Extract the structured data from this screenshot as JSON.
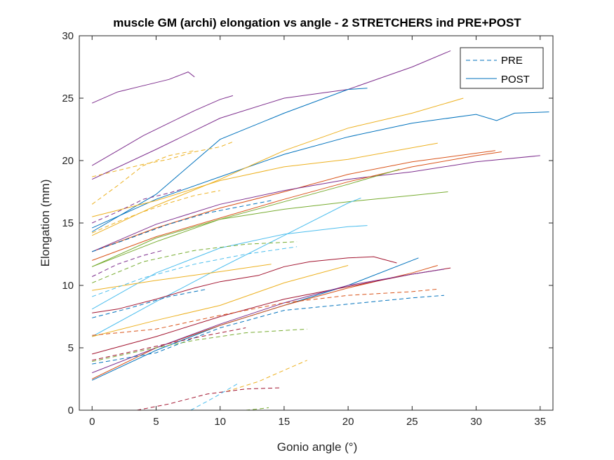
{
  "chart_data": {
    "type": "line",
    "title": "muscle GM (archi) elongation vs angle - 2 STRETCHERS ind PRE+POST",
    "xlabel": "Gonio angle (°)",
    "ylabel": "Elongation (mm)",
    "xlim": [
      -1,
      36
    ],
    "ylim": [
      0,
      30
    ],
    "xticks": [
      0,
      5,
      10,
      15,
      20,
      25,
      30,
      35
    ],
    "yticks": [
      0,
      5,
      10,
      15,
      20,
      25,
      30
    ],
    "grid": false,
    "legend": {
      "placement": "top-right",
      "entries": [
        {
          "label": "PRE",
          "style": "dashed",
          "color": "#0072BD"
        },
        {
          "label": "POST",
          "style": "solid",
          "color": "#0072BD"
        }
      ]
    },
    "series": [
      {
        "group": "POST",
        "color": "#7E2F8E",
        "x": [
          0,
          2,
          4,
          6,
          7.5,
          8
        ],
        "y": [
          24.6,
          25.5,
          26.0,
          26.5,
          27.1,
          26.7
        ]
      },
      {
        "group": "POST",
        "color": "#7E2F8E",
        "x": [
          0,
          2,
          4,
          6,
          8,
          10,
          11
        ],
        "y": [
          19.6,
          20.8,
          22.0,
          23.0,
          24.0,
          24.9,
          25.2
        ]
      },
      {
        "group": "POST",
        "color": "#7E2F8E",
        "x": [
          0,
          5,
          10,
          15,
          20,
          25,
          28
        ],
        "y": [
          18.5,
          20.9,
          23.4,
          25.0,
          25.7,
          27.5,
          28.8
        ]
      },
      {
        "group": "POST",
        "color": "#0072BD",
        "x": [
          0,
          5,
          10,
          15,
          20,
          21.5
        ],
        "y": [
          14.3,
          17.3,
          21.7,
          23.8,
          25.7,
          25.8
        ]
      },
      {
        "group": "POST",
        "color": "#0072BD",
        "x": [
          0,
          5,
          10,
          15,
          20,
          25,
          30,
          31.6,
          33,
          35.7
        ],
        "y": [
          14.6,
          16.9,
          18.7,
          20.5,
          21.9,
          23.0,
          23.7,
          23.2,
          23.8,
          23.9
        ]
      },
      {
        "group": "POST",
        "color": "#EDB120",
        "x": [
          0,
          5,
          10,
          15,
          20,
          25,
          29
        ],
        "y": [
          14.0,
          16.4,
          18.5,
          20.8,
          22.6,
          23.8,
          25.0
        ]
      },
      {
        "group": "POST",
        "color": "#EDB120",
        "x": [
          0,
          5,
          10,
          15,
          20,
          27
        ],
        "y": [
          15.5,
          16.8,
          18.4,
          19.5,
          20.1,
          21.4
        ]
      },
      {
        "group": "POST",
        "color": "#D95319",
        "x": [
          0,
          5,
          10,
          15,
          20,
          25,
          31.5
        ],
        "y": [
          12.7,
          14.6,
          16.2,
          17.5,
          18.9,
          19.9,
          20.8
        ]
      },
      {
        "group": "POST",
        "color": "#7E2F8E",
        "x": [
          0,
          5,
          10,
          15,
          20,
          25,
          30,
          35
        ],
        "y": [
          12.7,
          14.9,
          16.5,
          17.6,
          18.5,
          19.1,
          19.9,
          20.4
        ]
      },
      {
        "group": "POST",
        "color": "#D95319",
        "x": [
          0,
          5,
          10,
          15,
          20,
          25,
          30,
          32
        ],
        "y": [
          12.0,
          13.9,
          15.4,
          16.9,
          18.3,
          19.5,
          20.4,
          20.7
        ]
      },
      {
        "group": "POST",
        "color": "#77AC30",
        "x": [
          0,
          5,
          10,
          15,
          20,
          25,
          27.8
        ],
        "y": [
          11.5,
          13.8,
          15.3,
          16.1,
          16.7,
          17.2,
          17.5
        ]
      },
      {
        "group": "POST",
        "color": "#77AC30",
        "x": [
          0,
          5,
          10,
          15,
          20,
          24
        ],
        "y": [
          11.5,
          13.5,
          15.3,
          16.7,
          18.1,
          19.3
        ]
      },
      {
        "group": "POST",
        "color": "#4DBEEE",
        "x": [
          0,
          5,
          10,
          15,
          20,
          21
        ],
        "y": [
          5.9,
          8.7,
          11.4,
          14.0,
          16.6,
          17.0
        ]
      },
      {
        "group": "POST",
        "color": "#4DBEEE",
        "x": [
          0,
          5,
          10,
          15,
          20,
          21.5
        ],
        "y": [
          8.1,
          11.0,
          13.0,
          14.1,
          14.7,
          14.8
        ]
      },
      {
        "group": "POST",
        "color": "#EDB120",
        "x": [
          0,
          5,
          10,
          14
        ],
        "y": [
          9.6,
          10.4,
          11.1,
          11.7
        ]
      },
      {
        "group": "POST",
        "color": "#A2142F",
        "x": [
          0,
          2,
          5,
          8,
          10,
          13,
          15,
          17,
          20,
          22,
          23.8
        ],
        "y": [
          7.8,
          8.1,
          8.9,
          9.8,
          10.3,
          10.8,
          11.5,
          11.9,
          12.2,
          12.3,
          11.8
        ]
      },
      {
        "group": "POST",
        "color": "#EDB120",
        "x": [
          0,
          5,
          10,
          15,
          20
        ],
        "y": [
          5.9,
          7.2,
          8.4,
          10.2,
          11.6
        ]
      },
      {
        "group": "POST",
        "color": "#0072BD",
        "x": [
          0,
          5,
          10,
          15,
          20,
          25.5
        ],
        "y": [
          2.4,
          4.8,
          6.8,
          8.4,
          10.0,
          12.2
        ]
      },
      {
        "group": "POST",
        "color": "#D95319",
        "x": [
          0,
          5,
          10,
          15,
          20,
          25,
          27
        ],
        "y": [
          2.5,
          5.0,
          6.8,
          8.4,
          9.8,
          11.0,
          11.6
        ]
      },
      {
        "group": "POST",
        "color": "#A2142F",
        "x": [
          0,
          5,
          10,
          15,
          20,
          25,
          28
        ],
        "y": [
          4.5,
          5.9,
          7.5,
          8.9,
          9.9,
          10.9,
          11.4
        ]
      },
      {
        "group": "POST",
        "color": "#7E2F8E",
        "x": [
          0,
          5,
          10,
          15,
          20,
          25,
          27.5
        ],
        "y": [
          3.0,
          5.0,
          6.9,
          8.6,
          10.0,
          10.9,
          11.3
        ]
      },
      {
        "group": "PRE",
        "color": "#EDB120",
        "x": [
          0,
          2,
          4,
          6,
          8,
          10,
          11
        ],
        "y": [
          18.7,
          19.2,
          19.7,
          20.1,
          20.7,
          21.1,
          21.5
        ]
      },
      {
        "group": "PRE",
        "color": "#EDB120",
        "x": [
          0,
          2,
          4,
          6,
          8
        ],
        "y": [
          16.5,
          18.0,
          19.6,
          20.4,
          20.8
        ]
      },
      {
        "group": "PRE",
        "color": "#7E2F8E",
        "x": [
          0,
          2,
          4,
          6,
          7
        ],
        "y": [
          15.0,
          15.9,
          16.9,
          17.4,
          17.7
        ]
      },
      {
        "group": "PRE",
        "color": "#EDB120",
        "x": [
          0,
          2,
          4,
          6,
          8,
          10
        ],
        "y": [
          14.2,
          15.1,
          15.9,
          16.6,
          17.2,
          17.6
        ]
      },
      {
        "group": "PRE",
        "color": "#0072BD",
        "x": [
          0,
          3,
          6,
          9,
          12,
          14
        ],
        "y": [
          12.7,
          13.8,
          14.9,
          15.8,
          16.4,
          16.8
        ]
      },
      {
        "group": "PRE",
        "color": "#7E2F8E",
        "x": [
          0,
          2,
          4,
          5.5
        ],
        "y": [
          10.7,
          11.7,
          12.4,
          12.8
        ]
      },
      {
        "group": "PRE",
        "color": "#4DBEEE",
        "x": [
          0,
          4,
          8,
          12,
          16
        ],
        "y": [
          9.1,
          10.6,
          11.7,
          12.5,
          13.1
        ]
      },
      {
        "group": "PRE",
        "color": "#77AC30",
        "x": [
          0,
          4,
          8,
          12,
          16
        ],
        "y": [
          10.2,
          11.9,
          12.8,
          13.3,
          13.5
        ]
      },
      {
        "group": "PRE",
        "color": "#0072BD",
        "x": [
          0,
          3,
          6,
          9
        ],
        "y": [
          7.4,
          8.2,
          9.1,
          9.7
        ]
      },
      {
        "group": "PRE",
        "color": "#D95319",
        "x": [
          0,
          5,
          10,
          15,
          20,
          25,
          27
        ],
        "y": [
          6.0,
          6.5,
          7.6,
          8.6,
          9.2,
          9.5,
          9.7
        ]
      },
      {
        "group": "PRE",
        "color": "#0072BD",
        "x": [
          0,
          5,
          10,
          15,
          20,
          25,
          27.5
        ],
        "y": [
          3.7,
          4.6,
          6.6,
          8.0,
          8.5,
          9.0,
          9.2
        ]
      },
      {
        "group": "PRE",
        "color": "#77AC30",
        "x": [
          0,
          4,
          8,
          12,
          16.8
        ],
        "y": [
          3.9,
          4.8,
          5.6,
          6.2,
          6.5
        ]
      },
      {
        "group": "PRE",
        "color": "#A2142F",
        "x": [
          0,
          4,
          8,
          12
        ],
        "y": [
          4.0,
          4.9,
          5.8,
          6.6
        ]
      },
      {
        "group": "PRE",
        "color": "#EDB120",
        "x": [
          10.5,
          13,
          15,
          16.8
        ],
        "y": [
          1.5,
          2.3,
          3.2,
          4.0
        ]
      },
      {
        "group": "PRE",
        "color": "#A2142F",
        "x": [
          3.5,
          6,
          9,
          12,
          14.8
        ],
        "y": [
          0,
          0.5,
          1.3,
          1.7,
          1.8
        ]
      },
      {
        "group": "PRE",
        "color": "#4DBEEE",
        "x": [
          7.7,
          9.5,
          11.5
        ],
        "y": [
          0,
          1.0,
          2.2
        ]
      },
      {
        "group": "PRE",
        "color": "#77AC30",
        "x": [
          12,
          13,
          13.8
        ],
        "y": [
          0,
          0.1,
          0.2
        ]
      }
    ]
  }
}
